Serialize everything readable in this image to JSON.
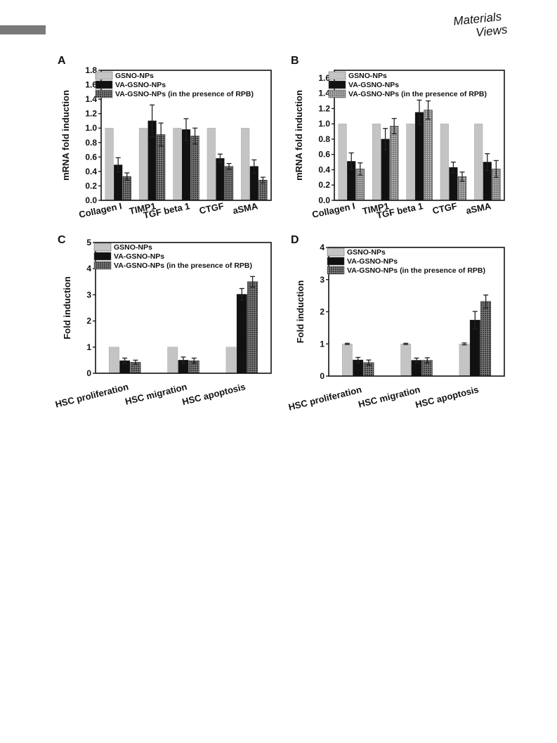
{
  "publisher_logo": {
    "line1": "Materials",
    "line2": "Views"
  },
  "chart_data": [
    {
      "panel_label": "A",
      "type": "bar",
      "categories": [
        "Collagen I",
        "TIMP1",
        "TGF beta 1",
        "CTGF",
        "aSMA"
      ],
      "ylabel": "mRNA fold induction",
      "ylim": [
        0,
        1.8
      ],
      "yticks": [
        0.0,
        0.2,
        0.4,
        0.6,
        0.8,
        1.0,
        1.2,
        1.4,
        1.6,
        1.8
      ],
      "tick_format": 1,
      "legend_position": "top-left",
      "series": [
        {
          "name": "GSNO-NPs",
          "values": [
            1.0,
            1.0,
            1.0,
            1.0,
            1.0
          ],
          "errors": [
            0,
            0,
            0,
            0,
            0
          ],
          "color": "#c4c4c4",
          "pattern": "none"
        },
        {
          "name": "VA-GSNO-NPs",
          "values": [
            0.49,
            1.1,
            0.98,
            0.58,
            0.47
          ],
          "errors": [
            0.1,
            0.22,
            0.15,
            0.06,
            0.09
          ],
          "color": "#111111",
          "pattern": "none"
        },
        {
          "name": "VA-GSNO-NPs (in the presence of RPB)",
          "values": [
            0.33,
            0.91,
            0.89,
            0.47,
            0.28
          ],
          "errors": [
            0.05,
            0.16,
            0.11,
            0.04,
            0.04
          ],
          "color": "#555555",
          "pattern": "grid-dark"
        }
      ]
    },
    {
      "panel_label": "B",
      "type": "bar",
      "categories": [
        "Collagen I",
        "TIMP1",
        "TGF beta 1",
        "CTGF",
        "aSMA"
      ],
      "ylabel": "mRNA fold induction",
      "ylim": [
        0,
        1.7
      ],
      "yticks": [
        0.0,
        0.2,
        0.4,
        0.6,
        0.8,
        1.0,
        1.2,
        1.4,
        1.6
      ],
      "tick_format": 1,
      "legend_position": "top-left",
      "series": [
        {
          "name": "GSNO-NPs",
          "values": [
            1.0,
            1.0,
            1.0,
            1.0,
            1.0
          ],
          "errors": [
            0,
            0,
            0,
            0,
            0
          ],
          "color": "#c4c4c4",
          "pattern": "none"
        },
        {
          "name": "VA-GSNO-NPs",
          "values": [
            0.51,
            0.8,
            1.15,
            0.43,
            0.5
          ],
          "errors": [
            0.11,
            0.14,
            0.16,
            0.07,
            0.11
          ],
          "color": "#111111",
          "pattern": "none"
        },
        {
          "name": "VA-GSNO-NPs (in the presence of RPB)",
          "values": [
            0.41,
            0.97,
            1.18,
            0.31,
            0.41
          ],
          "errors": [
            0.08,
            0.1,
            0.12,
            0.06,
            0.11
          ],
          "color": "#9a9a9a",
          "pattern": "grid-light"
        }
      ]
    },
    {
      "panel_label": "C",
      "type": "bar",
      "categories": [
        "HSC proliferation",
        "HSC migration",
        "HSC apoptosis"
      ],
      "ylabel": "Fold induction",
      "ylim": [
        0,
        5
      ],
      "yticks": [
        0,
        1,
        2,
        3,
        4,
        5
      ],
      "tick_format": 0,
      "legend_position": "top-left",
      "series": [
        {
          "name": "GSNO-NPs",
          "values": [
            1.0,
            1.0,
            1.0
          ],
          "errors": [
            0,
            0,
            0
          ],
          "color": "#c4c4c4",
          "pattern": "none"
        },
        {
          "name": "VA-GSNO-NPs",
          "values": [
            0.48,
            0.5,
            3.02
          ],
          "errors": [
            0.1,
            0.12,
            0.22
          ],
          "color": "#111111",
          "pattern": "none"
        },
        {
          "name": "VA-GSNO-NPs (in the presence of RPB)",
          "values": [
            0.42,
            0.48,
            3.5
          ],
          "errors": [
            0.08,
            0.1,
            0.2
          ],
          "color": "#6a6a6a",
          "pattern": "grid-dark"
        }
      ]
    },
    {
      "panel_label": "D",
      "type": "bar",
      "categories": [
        "HSC proliferation",
        "HSC migration",
        "HSC apoptosis"
      ],
      "ylabel": "Fold induction",
      "ylim": [
        0,
        4
      ],
      "yticks": [
        0,
        1,
        2,
        3,
        4
      ],
      "tick_format": 0,
      "legend_position": "top-left",
      "series": [
        {
          "name": "GSNO-NPs",
          "values": [
            1.0,
            1.0,
            1.0
          ],
          "errors": [
            0.02,
            0.02,
            0.03
          ],
          "color": "#c4c4c4",
          "pattern": "none"
        },
        {
          "name": "VA-GSNO-NPs",
          "values": [
            0.5,
            0.49,
            1.74
          ],
          "errors": [
            0.08,
            0.07,
            0.27
          ],
          "color": "#111111",
          "pattern": "none"
        },
        {
          "name": "VA-GSNO-NPs (in the presence of RPB)",
          "values": [
            0.42,
            0.49,
            2.32
          ],
          "errors": [
            0.08,
            0.08,
            0.2
          ],
          "color": "#6a6a6a",
          "pattern": "grid-dark"
        }
      ]
    }
  ]
}
